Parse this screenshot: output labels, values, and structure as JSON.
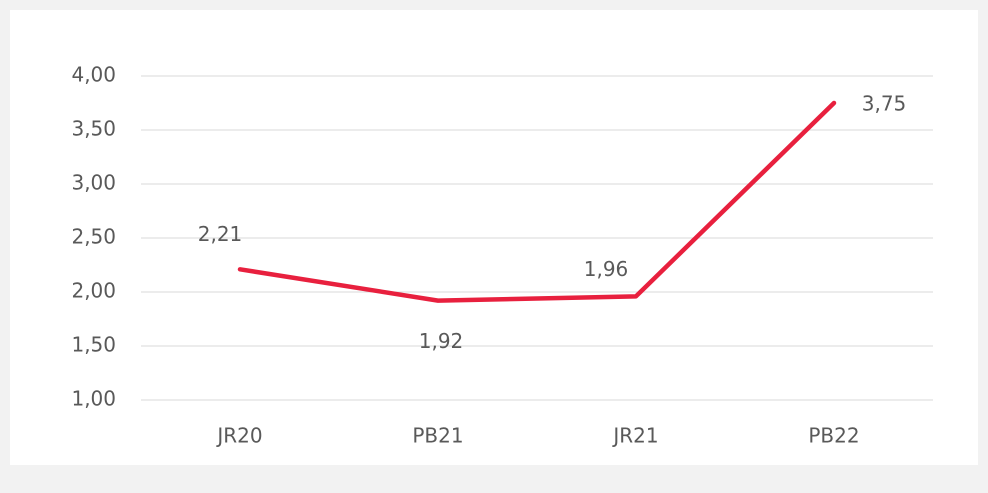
{
  "chart_data": {
    "type": "line",
    "categories": [
      "JR20",
      "PB21",
      "JR21",
      "PB22"
    ],
    "series": [
      {
        "name": null,
        "color": "#e8203e",
        "values": [
          2.21,
          1.92,
          1.96,
          3.75
        ],
        "value_labels": [
          "2,21",
          "1,92",
          "1,96",
          "3,75"
        ]
      }
    ],
    "ylim": [
      1,
      4
    ],
    "yticks": [
      {
        "value": 1,
        "label": "1,00"
      },
      {
        "value": 1.5,
        "label": "1,50"
      },
      {
        "value": 2,
        "label": "2,00"
      },
      {
        "value": 2.5,
        "label": "2,50"
      },
      {
        "value": 3,
        "label": "3,00"
      },
      {
        "value": 3.5,
        "label": "3,50"
      },
      {
        "value": 4,
        "label": "4,00"
      }
    ],
    "grid": true
  }
}
